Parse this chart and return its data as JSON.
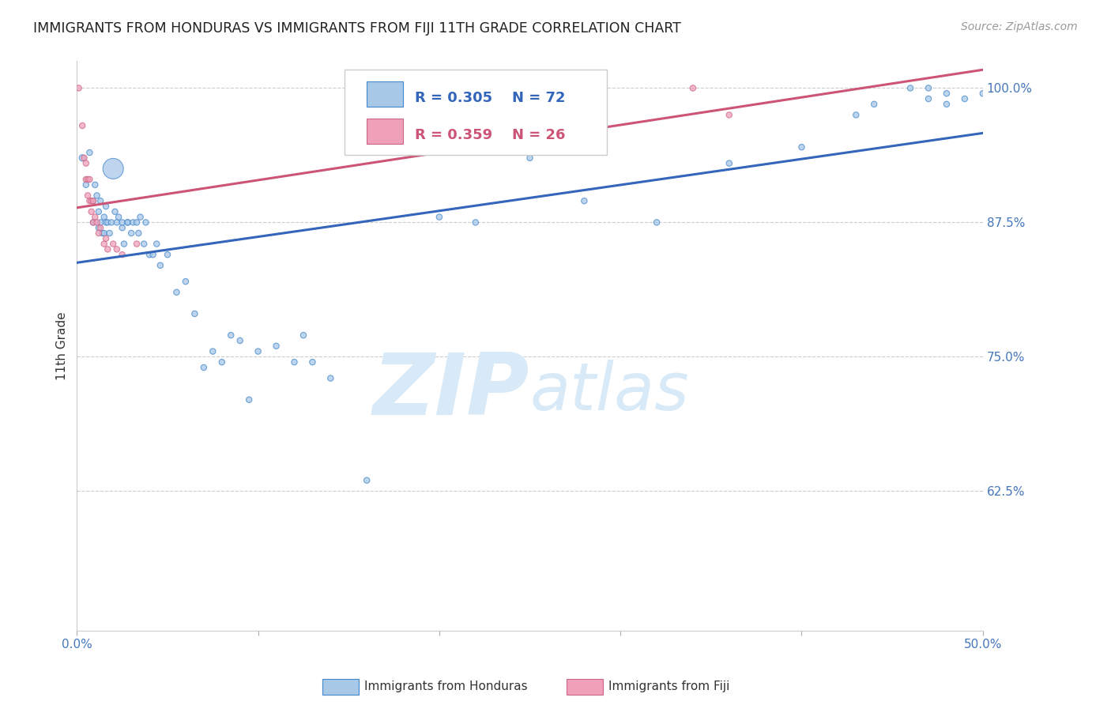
{
  "title": "IMMIGRANTS FROM HONDURAS VS IMMIGRANTS FROM FIJI 11TH GRADE CORRELATION CHART",
  "source": "Source: ZipAtlas.com",
  "ylabel": "11th Grade",
  "legend_honduras": "Immigrants from Honduras",
  "legend_fiji": "Immigrants from Fiji",
  "r_honduras": 0.305,
  "n_honduras": 72,
  "r_fiji": 0.359,
  "n_fiji": 26,
  "blue_color": "#a8c8e8",
  "pink_color": "#f0a0b8",
  "blue_edge_color": "#4488cc",
  "pink_edge_color": "#cc6688",
  "blue_line_color": "#3366bb",
  "pink_line_color": "#cc5577",
  "watermark_zip": "ZIP",
  "watermark_atlas": "atlas",
  "watermark_color": "#d8eaf8",
  "xlim": [
    0.0,
    0.5
  ],
  "ylim": [
    0.495,
    1.025
  ],
  "yticks": [
    0.625,
    0.75,
    0.875,
    1.0
  ],
  "ytick_labels": [
    "62.5%",
    "75.0%",
    "87.5%",
    "100.0%"
  ],
  "xticks": [
    0.0,
    0.1,
    0.2,
    0.3,
    0.4,
    0.5
  ],
  "xtick_labels": [
    "0.0%",
    "",
    "",
    "",
    "",
    "50.0%"
  ],
  "blue_x": [
    0.003,
    0.005,
    0.007,
    0.009,
    0.009,
    0.01,
    0.011,
    0.012,
    0.012,
    0.013,
    0.013,
    0.014,
    0.015,
    0.015,
    0.016,
    0.016,
    0.017,
    0.018,
    0.019,
    0.02,
    0.021,
    0.022,
    0.023,
    0.025,
    0.025,
    0.026,
    0.028,
    0.028,
    0.03,
    0.031,
    0.033,
    0.034,
    0.035,
    0.037,
    0.038,
    0.04,
    0.042,
    0.044,
    0.046,
    0.05,
    0.055,
    0.06,
    0.065,
    0.07,
    0.075,
    0.08,
    0.085,
    0.09,
    0.095,
    0.1,
    0.11,
    0.12,
    0.125,
    0.13,
    0.14,
    0.16,
    0.2,
    0.22,
    0.25,
    0.28,
    0.32,
    0.36,
    0.4,
    0.43,
    0.44,
    0.46,
    0.47,
    0.47,
    0.48,
    0.48,
    0.49,
    0.5
  ],
  "blue_y": [
    0.935,
    0.91,
    0.94,
    0.895,
    0.875,
    0.91,
    0.9,
    0.885,
    0.87,
    0.895,
    0.875,
    0.865,
    0.88,
    0.865,
    0.89,
    0.875,
    0.875,
    0.865,
    0.875,
    0.925,
    0.885,
    0.875,
    0.88,
    0.87,
    0.875,
    0.855,
    0.875,
    0.875,
    0.865,
    0.875,
    0.875,
    0.865,
    0.88,
    0.855,
    0.875,
    0.845,
    0.845,
    0.855,
    0.835,
    0.845,
    0.81,
    0.82,
    0.79,
    0.74,
    0.755,
    0.745,
    0.77,
    0.765,
    0.71,
    0.755,
    0.76,
    0.745,
    0.77,
    0.745,
    0.73,
    0.635,
    0.88,
    0.875,
    0.935,
    0.895,
    0.875,
    0.93,
    0.945,
    0.975,
    0.985,
    1.0,
    1.0,
    0.99,
    0.995,
    0.985,
    0.99,
    0.995
  ],
  "blue_sizes": [
    35,
    28,
    28,
    28,
    28,
    28,
    28,
    28,
    28,
    28,
    28,
    28,
    28,
    28,
    28,
    28,
    28,
    28,
    28,
    350,
    28,
    28,
    28,
    28,
    28,
    28,
    28,
    28,
    28,
    28,
    28,
    28,
    28,
    28,
    28,
    28,
    28,
    28,
    28,
    28,
    28,
    28,
    28,
    28,
    28,
    28,
    28,
    28,
    28,
    28,
    28,
    28,
    28,
    28,
    28,
    28,
    28,
    28,
    28,
    28,
    28,
    28,
    28,
    28,
    28,
    28,
    28,
    28,
    28,
    28,
    28,
    28
  ],
  "pink_x": [
    0.001,
    0.003,
    0.004,
    0.005,
    0.005,
    0.006,
    0.006,
    0.007,
    0.007,
    0.008,
    0.008,
    0.009,
    0.009,
    0.01,
    0.011,
    0.012,
    0.013,
    0.015,
    0.016,
    0.017,
    0.02,
    0.022,
    0.025,
    0.033,
    0.34,
    0.36
  ],
  "pink_y": [
    1.0,
    0.965,
    0.935,
    0.93,
    0.915,
    0.915,
    0.9,
    0.915,
    0.895,
    0.895,
    0.885,
    0.895,
    0.875,
    0.88,
    0.875,
    0.865,
    0.87,
    0.855,
    0.86,
    0.85,
    0.855,
    0.85,
    0.845,
    0.855,
    1.0,
    0.975
  ],
  "pink_sizes": [
    28,
    28,
    28,
    28,
    28,
    28,
    28,
    28,
    28,
    28,
    28,
    28,
    28,
    28,
    28,
    28,
    28,
    28,
    28,
    28,
    28,
    28,
    28,
    28,
    28,
    28
  ]
}
